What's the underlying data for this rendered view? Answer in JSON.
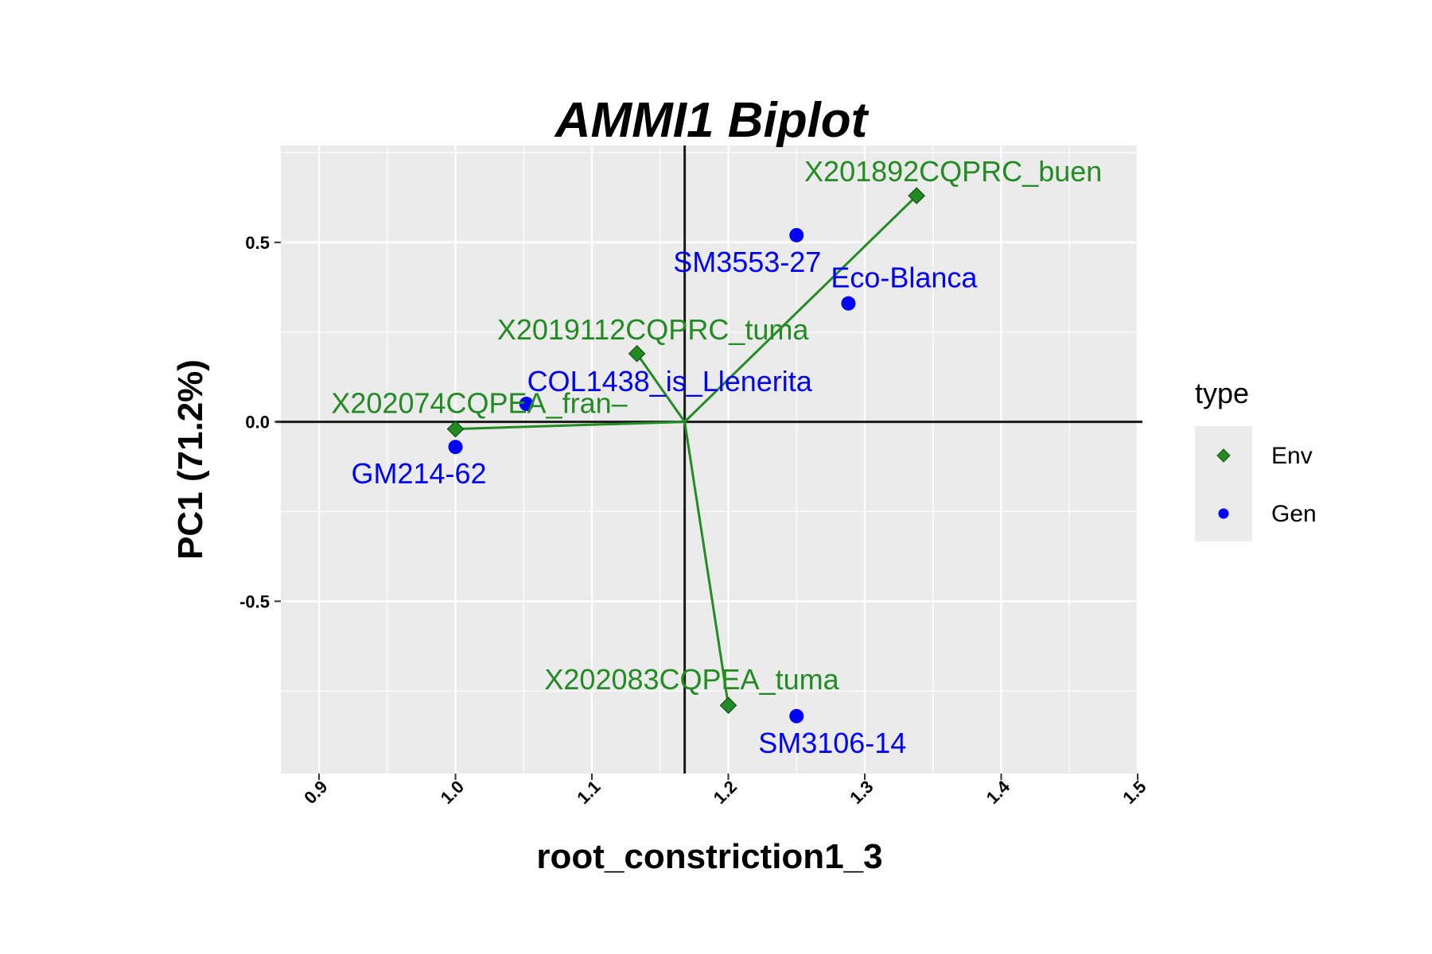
{
  "chart_data": {
    "type": "scatter",
    "title": "AMMI1 Biplot",
    "xlabel": "root_constriction1_3",
    "ylabel": "PC1 (71.2%)",
    "xlim": [
      0.872,
      1.5
    ],
    "ylim": [
      -0.98,
      0.77
    ],
    "x_ticks": [
      "0.9",
      "1.0",
      "1.1",
      "1.2",
      "1.3",
      "1.4",
      "1.5"
    ],
    "y_ticks": [
      "-0.5",
      "0.0",
      "0.5"
    ],
    "origin": {
      "x": 1.168,
      "y": 0.0
    },
    "grid": true,
    "legend": {
      "title": "type",
      "position": "right"
    },
    "series": [
      {
        "name": "Env",
        "color": "#228B22",
        "marker": "diamond",
        "points": [
          {
            "label": "X201892CQPRC_buen",
            "x": 1.338,
            "y": 0.63
          },
          {
            "label": "X2019112CQPRC_tuma",
            "x": 1.133,
            "y": 0.19
          },
          {
            "label": "X202074CQPEA_fran–",
            "x": 1.0,
            "y": -0.02
          },
          {
            "label": "X202083CQPEA_tuma",
            "x": 1.2,
            "y": -0.79
          }
        ]
      },
      {
        "name": "Gen",
        "color": "#0000FF",
        "marker": "circle",
        "points": [
          {
            "label": "SM3553-27",
            "x": 1.25,
            "y": 0.52
          },
          {
            "label": "Eco-Blanca",
            "x": 1.288,
            "y": 0.33
          },
          {
            "label": "COL1438_is_Llenerita",
            "x": 1.052,
            "y": 0.05
          },
          {
            "label": "GM214-62",
            "x": 1.0,
            "y": -0.07
          },
          {
            "label": "SM3106-14",
            "x": 1.25,
            "y": -0.82
          }
        ]
      }
    ]
  }
}
